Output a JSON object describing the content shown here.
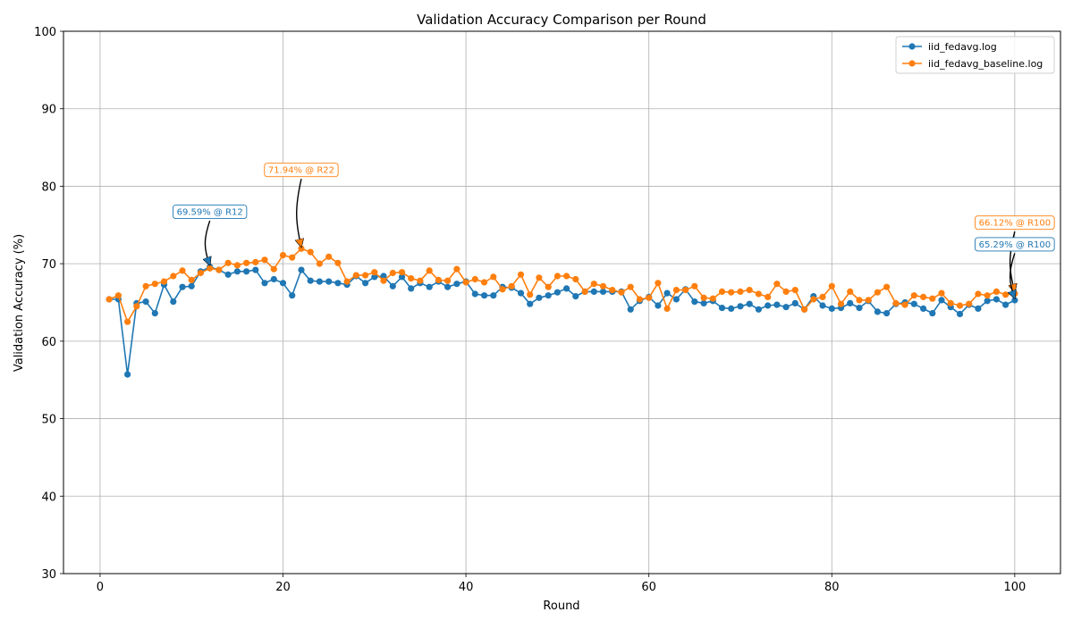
{
  "chart_data": {
    "type": "line",
    "title": "Validation Accuracy Comparison per Round",
    "xlabel": "Round",
    "ylabel": "Validation Accuracy (%)",
    "xlim": [
      -4,
      105
    ],
    "ylim": [
      30,
      100
    ],
    "xticks": [
      0,
      20,
      40,
      60,
      80,
      100
    ],
    "yticks": [
      30,
      40,
      50,
      60,
      70,
      80,
      90,
      100
    ],
    "grid": true,
    "legend_position": "top-right",
    "x": [
      1,
      2,
      3,
      4,
      5,
      6,
      7,
      8,
      9,
      10,
      11,
      12,
      13,
      14,
      15,
      16,
      17,
      18,
      19,
      20,
      21,
      22,
      23,
      24,
      25,
      26,
      27,
      28,
      29,
      30,
      31,
      32,
      33,
      34,
      35,
      36,
      37,
      38,
      39,
      40,
      41,
      42,
      43,
      44,
      45,
      46,
      47,
      48,
      49,
      50,
      51,
      52,
      53,
      54,
      55,
      56,
      57,
      58,
      59,
      60,
      61,
      62,
      63,
      64,
      65,
      66,
      67,
      68,
      69,
      70,
      71,
      72,
      73,
      74,
      75,
      76,
      77,
      78,
      79,
      80,
      81,
      82,
      83,
      84,
      85,
      86,
      87,
      88,
      89,
      90,
      91,
      92,
      93,
      94,
      95,
      96,
      97,
      98,
      99,
      100
    ],
    "series": [
      {
        "name": "iid_fedavg.log",
        "color": "#1f77b4",
        "values": [
          65.4,
          65.4,
          55.7,
          64.9,
          65.1,
          63.6,
          67.3,
          65.1,
          67.0,
          67.1,
          69.0,
          69.59,
          69.2,
          68.6,
          69.0,
          69.0,
          69.2,
          67.5,
          68.0,
          67.5,
          65.9,
          69.2,
          67.8,
          67.7,
          67.7,
          67.5,
          67.3,
          68.4,
          67.5,
          68.3,
          68.4,
          67.1,
          68.3,
          66.8,
          67.5,
          67.0,
          67.7,
          67.0,
          67.4,
          67.7,
          66.1,
          65.9,
          65.9,
          67.0,
          66.9,
          66.2,
          64.8,
          65.6,
          65.9,
          66.3,
          66.8,
          65.8,
          66.4,
          66.4,
          66.4,
          66.4,
          66.4,
          64.1,
          65.2,
          65.7,
          64.6,
          66.2,
          65.4,
          66.7,
          65.1,
          64.9,
          65.2,
          64.3,
          64.2,
          64.5,
          64.8,
          64.1,
          64.6,
          64.7,
          64.4,
          64.9,
          64.1,
          65.8,
          64.6,
          64.2,
          64.3,
          64.9,
          64.3,
          65.2,
          63.8,
          63.6,
          64.8,
          65.0,
          64.8,
          64.2,
          63.6,
          65.3,
          64.4,
          63.5,
          64.7,
          64.2,
          65.2,
          65.4,
          64.7,
          65.29
        ]
      },
      {
        "name": "iid_fedavg_baseline.log",
        "color": "#ff7f0e",
        "values": [
          65.4,
          65.9,
          62.5,
          64.5,
          67.1,
          67.4,
          67.7,
          68.4,
          69.1,
          67.9,
          68.8,
          69.4,
          69.2,
          70.1,
          69.8,
          70.1,
          70.2,
          70.5,
          69.3,
          71.1,
          70.8,
          71.94,
          71.5,
          70.0,
          70.9,
          70.1,
          67.7,
          68.5,
          68.5,
          68.9,
          67.8,
          68.8,
          68.9,
          68.1,
          67.8,
          69.1,
          67.9,
          67.8,
          69.3,
          67.6,
          68.0,
          67.6,
          68.3,
          66.7,
          67.1,
          68.6,
          66.0,
          68.2,
          67.0,
          68.4,
          68.4,
          68.0,
          66.4,
          67.4,
          67.1,
          66.6,
          66.3,
          67.0,
          65.4,
          65.6,
          67.5,
          64.2,
          66.6,
          66.6,
          67.1,
          65.6,
          65.5,
          66.4,
          66.3,
          66.4,
          66.6,
          66.1,
          65.7,
          67.4,
          66.4,
          66.6,
          64.1,
          65.4,
          65.7,
          67.1,
          64.8,
          66.4,
          65.3,
          65.3,
          66.3,
          67.0,
          64.9,
          64.7,
          65.9,
          65.7,
          65.5,
          66.2,
          64.9,
          64.6,
          64.8,
          66.1,
          65.9,
          66.4,
          66.0,
          66.12
        ]
      }
    ],
    "annotations": [
      {
        "text": "69.59% @ R12",
        "x": 12,
        "y": 69.59,
        "text_x": 12,
        "text_y": 76.7,
        "series": 0
      },
      {
        "text": "71.94% @ R22",
        "x": 22,
        "y": 71.94,
        "text_x": 22,
        "text_y": 82.1,
        "series": 1
      },
      {
        "text": "66.12% @ R100",
        "x": 100,
        "y": 66.12,
        "text_x": 100,
        "text_y": 75.3,
        "series": 1
      },
      {
        "text": "65.29% @ R100",
        "x": 100,
        "y": 65.29,
        "text_x": 100,
        "text_y": 72.5,
        "series": 0
      }
    ]
  }
}
